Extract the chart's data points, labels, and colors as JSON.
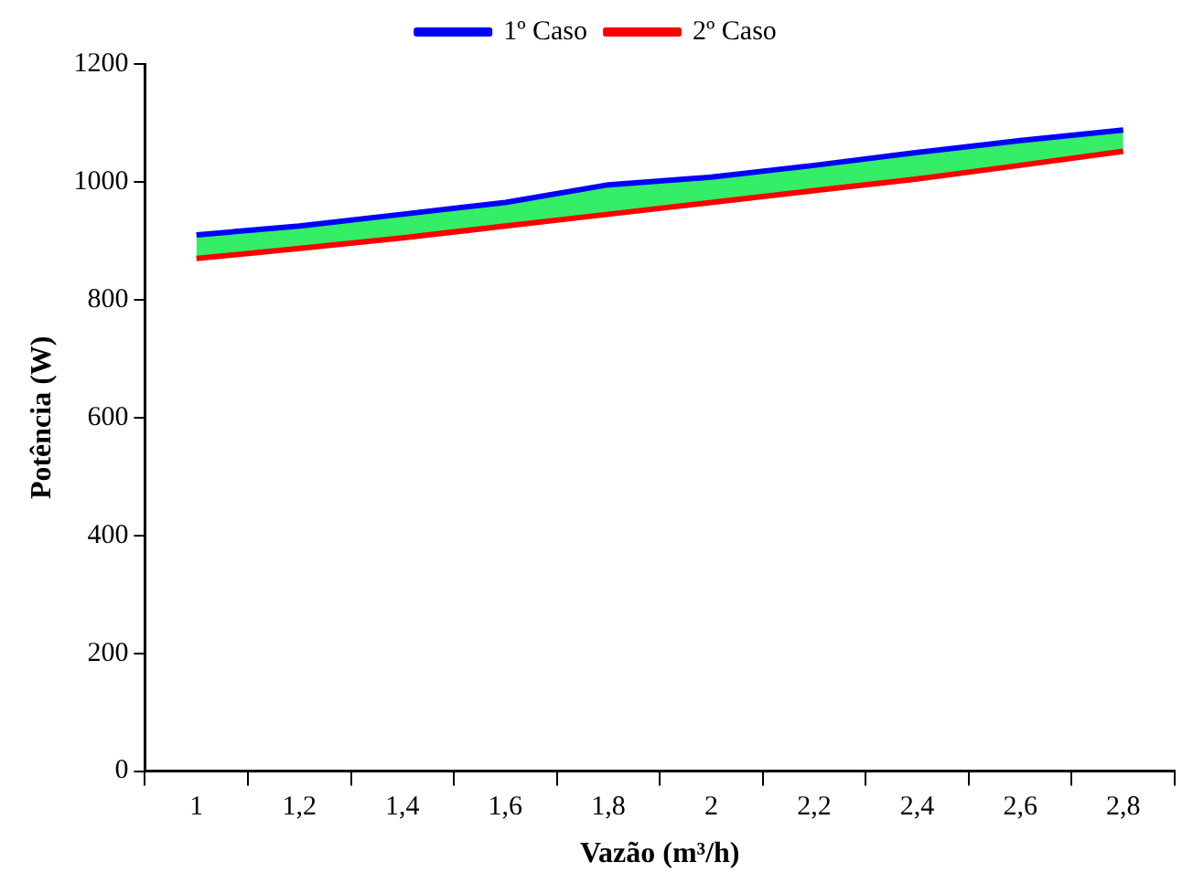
{
  "chart_data": {
    "type": "line",
    "xlabel": "Vazão (m³/h)",
    "ylabel": "Potência (W)",
    "categories": [
      "1",
      "1,2",
      "1,4",
      "1,6",
      "1,8",
      "2",
      "2,2",
      "2,4",
      "2,6",
      "2,8"
    ],
    "series": [
      {
        "name": "1º Caso",
        "color": "#0000ff",
        "values": [
          910,
          925,
          945,
          965,
          995,
          1008,
          1028,
          1050,
          1070,
          1088
        ]
      },
      {
        "name": "2º Caso",
        "color": "#ff0000",
        "values": [
          870,
          887,
          905,
          925,
          945,
          965,
          985,
          1005,
          1028,
          1052
        ]
      },
      {
        "type": "area",
        "color": "#33ee66",
        "values": [
          910,
          925,
          945,
          965,
          995,
          1008,
          1028,
          1050,
          1070,
          1088
        ]
      }
    ],
    "ylim": [
      0,
      1200
    ],
    "yticks": [
      0,
      200,
      400,
      600,
      800,
      1000,
      1200
    ],
    "grid": false,
    "legend": "top",
    "marker": "none",
    "line_style": "solid"
  }
}
